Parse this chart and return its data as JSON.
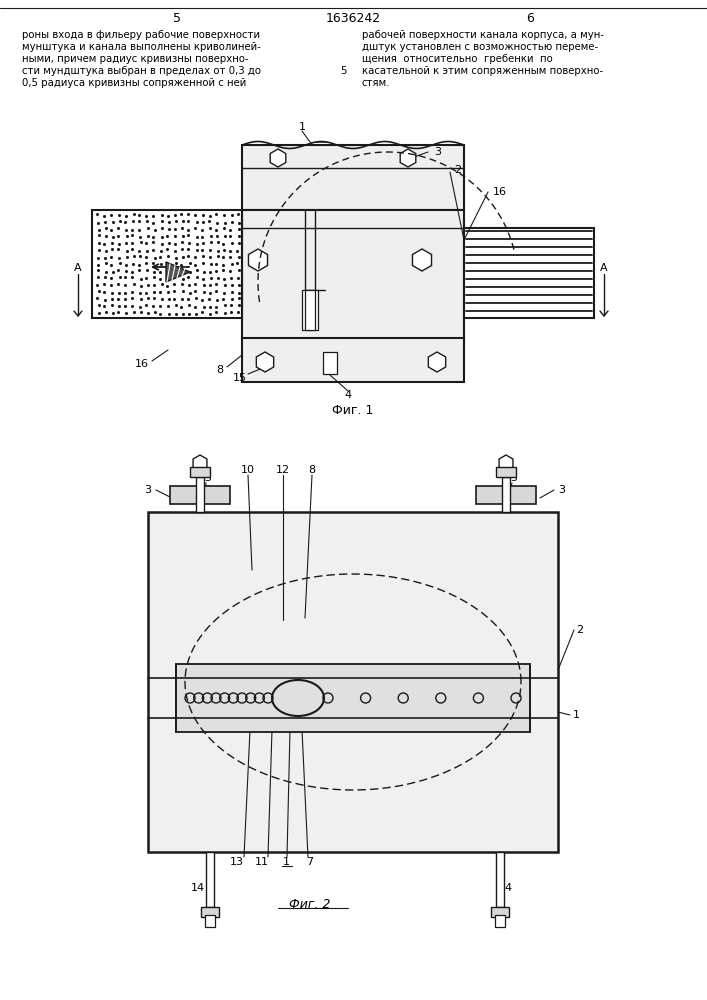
{
  "page_number_left": "5",
  "page_number_center": "1636242",
  "page_number_right": "6",
  "text_left": "роны входа в фильеру рабочие поверхности\nмунштука и канала выполнены криволиней-\nными, причем радиус кривизны поверхно-\nсти мундштука выбран в пределах от 0,3 до\n0,5 радиуса кривизны сопряженной с ней",
  "text_right": "рабочей поверхности канала корпуса, а мун-\nдштук установлен с возможностью переме-\nщения  относительно  гребенки  по\nкасательной к этим сопряженным поверхно-\nстям.",
  "text_num": "5",
  "fig1_label": "Фиг. 1",
  "fig2_label": "Фиг. 2",
  "bg_color": "#ffffff",
  "line_color": "#1a1a1a",
  "dashed_color": "#1a1a1a"
}
